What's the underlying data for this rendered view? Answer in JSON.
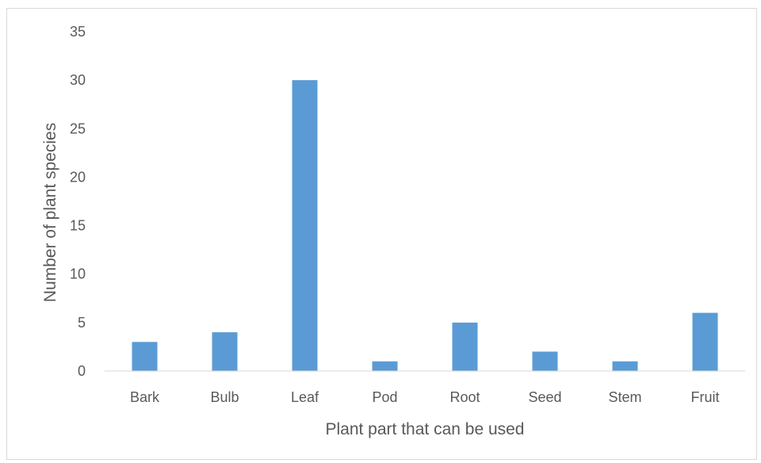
{
  "chart_data": {
    "type": "bar",
    "title": "",
    "xlabel": "Plant part that can be used",
    "ylabel": "Number of plant species",
    "categories": [
      "Bark",
      "Bulb",
      "Leaf",
      "Pod",
      "Root",
      "Seed",
      "Stem",
      "Fruit"
    ],
    "values": [
      3,
      4,
      30,
      1,
      5,
      2,
      1,
      6
    ],
    "ylim": [
      0,
      35
    ],
    "yticks": [
      0,
      5,
      10,
      15,
      20,
      25,
      30,
      35
    ],
    "grid": false,
    "legend": "none",
    "bar_color": "#5b9bd5",
    "axis_color": "#d9d9d9",
    "text_color": "#595959"
  }
}
